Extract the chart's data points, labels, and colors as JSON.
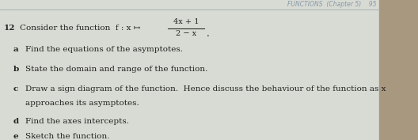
{
  "bg_color": "#cdd0c8",
  "page_bg": "#d8dbd3",
  "right_strip_color": "#a89880",
  "header_text": "FUNCTIONS  (Chapter 5)    95",
  "header_color": "#8899aa",
  "header_fontsize": 5.5,
  "line_color": "#aab0b8",
  "question_number": "12",
  "question_intro": "Consider the function",
  "function_prefix": "f : x ↦",
  "numerator": "4x + 1",
  "denominator": "2 − x",
  "text_color": "#222222",
  "label_color": "#111111",
  "main_fontsize": 7.5,
  "parts": [
    {
      "label": "a",
      "text": "Find the equations of the asymptotes."
    },
    {
      "label": "b",
      "text": "State the domain and range of the function."
    },
    {
      "label": "c",
      "text": "Draw a sign diagram of the function.  Hence discuss the behaviour of the function as x"
    },
    {
      "label": "",
      "text": "approaches its asymptotes."
    },
    {
      "label": "d",
      "text": "Find the axes intercepts."
    },
    {
      "label": "e",
      "text": "Sketch the function."
    }
  ]
}
